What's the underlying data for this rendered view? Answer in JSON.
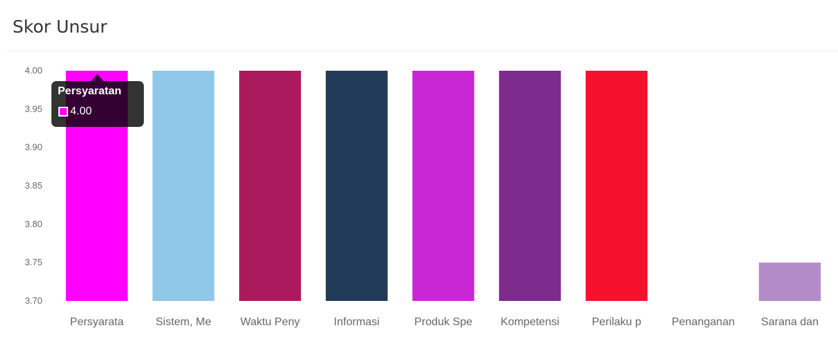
{
  "title": "Skor Unsur",
  "chart_data": {
    "type": "bar",
    "categories": [
      "Persyarata",
      "Sistem, Me",
      "Waktu Peny",
      "Informasi",
      "Produk Spe",
      "Kompetensi",
      "Perilaku p",
      "Penanganan",
      "Sarana dan"
    ],
    "values": [
      4.0,
      4.0,
      4.0,
      4.0,
      4.0,
      4.0,
      4.0,
      3.7,
      3.75
    ],
    "colors": [
      "#ff00ff",
      "#8fc8e8",
      "#aa1a5c",
      "#213a57",
      "#c927d6",
      "#7e2b8e",
      "#f5102c",
      "#cccccc",
      "#b38bc9"
    ],
    "yticks": [
      "4.00",
      "3.95",
      "3.90",
      "3.85",
      "3.80",
      "3.75",
      "3.70"
    ],
    "ylim": [
      3.7,
      4.0
    ],
    "grid": false,
    "legend": "none"
  },
  "tooltip": {
    "title": "Persyaratan",
    "value": "4.00",
    "color": "#ff00ff"
  }
}
